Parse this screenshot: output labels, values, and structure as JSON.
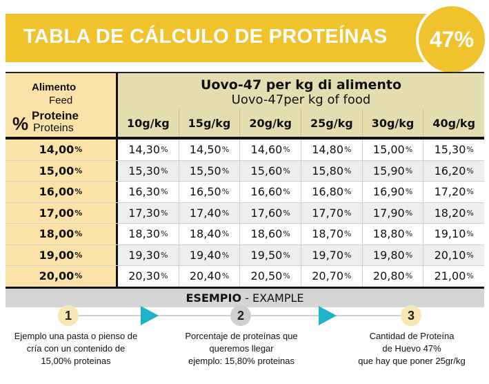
{
  "header": {
    "title": "TABLA DE CÁLCULO DE PROTEÍNAS",
    "badge": "47%",
    "brand_color": "#f0c22b"
  },
  "table": {
    "corner": {
      "alimento": "Alimento",
      "feed": "Feed",
      "percent_symbol": "%",
      "proteine": "Proteine",
      "proteins": "Proteins"
    },
    "title_it": "Uovo-47 per kg di alimento",
    "title_en": "Uovo-47per kg of food",
    "columns": [
      "10g/kg",
      "15g/kg",
      "20g/kg",
      "25g/kg",
      "30g/kg",
      "40g/kg"
    ],
    "rows": [
      {
        "label": "14,00",
        "values": [
          "14,30",
          "14,50",
          "14,60",
          "14,80",
          "15,00",
          "15,30"
        ]
      },
      {
        "label": "15,00",
        "values": [
          "15,30",
          "15,50",
          "15,60",
          "15,80",
          "15,90",
          "16,20"
        ]
      },
      {
        "label": "16,00",
        "values": [
          "16,30",
          "16,50",
          "16,60",
          "16,80",
          "16,90",
          "17,20"
        ]
      },
      {
        "label": "17,00",
        "values": [
          "17,30",
          "17,40",
          "17,60",
          "17,70",
          "17,90",
          "18,20"
        ]
      },
      {
        "label": "18,00",
        "values": [
          "18,30",
          "18,40",
          "18,60",
          "18,70",
          "18,80",
          "19,10"
        ]
      },
      {
        "label": "19,00",
        "values": [
          "19,30",
          "19,40",
          "19,50",
          "19,70",
          "19,80",
          "20,10"
        ]
      },
      {
        "label": "20,00",
        "values": [
          "20,30",
          "20,40",
          "20,50",
          "20,70",
          "20,80",
          "21,00"
        ]
      }
    ],
    "percent_suffix": "%",
    "example_bold": "ESEMPIO",
    "example_rest": " - EXAMPLE"
  },
  "steps": [
    {
      "number": "1",
      "color": "#f6e7b3",
      "lines": [
        "Ejemplo una pasta o pienso de",
        "cría con un contenido de",
        "15,00% proteinas"
      ]
    },
    {
      "number": "2",
      "color": "#cfcfcf",
      "lines": [
        "Porcentaje de proteínas que",
        "queremos llegar",
        "ejemplo: 15,80% proteinas"
      ]
    },
    {
      "number": "3",
      "color": "#f6e7b3",
      "lines": [
        "Cantidad de Proteína",
        "de Huevo 47%",
        "que hay que poner 25gr/kg"
      ]
    }
  ],
  "arrow_color": "#1fb3c7"
}
